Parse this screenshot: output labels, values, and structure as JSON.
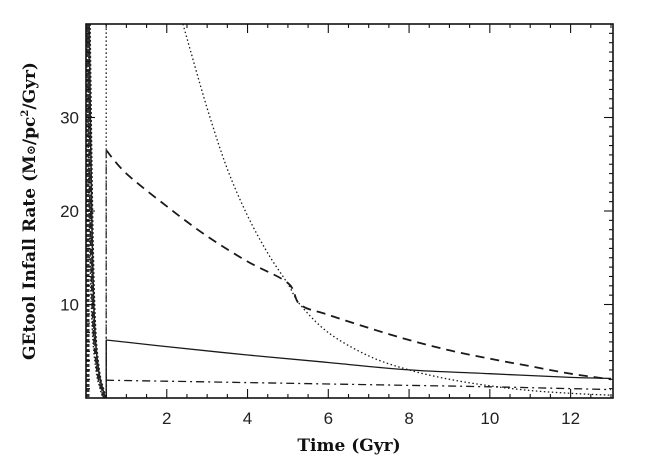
{
  "chart_data": {
    "type": "line",
    "title": "",
    "xlabel": "Time (Gyr)",
    "ylabel": "GEtool Infall Rate (M⊙/pc²/Gyr)",
    "xlim": [
      0,
      13.05
    ],
    "ylim": [
      0,
      40
    ],
    "grid": false,
    "legend": null,
    "x_ticks": [
      2,
      4,
      6,
      8,
      10,
      12
    ],
    "y_ticks": [
      10,
      20,
      30
    ],
    "x_minor_step": 0.5,
    "y_minor_step": 1,
    "series": [
      {
        "name": "solid",
        "style": "solid",
        "x": [
          0.5,
          2,
          4,
          6,
          8,
          10,
          12,
          13
        ],
        "y": [
          6.2,
          5.5,
          4.6,
          3.8,
          3.0,
          2.6,
          2.2,
          2.1
        ]
      },
      {
        "name": "dashed",
        "style": "dashed",
        "x": [
          0.5,
          1,
          2,
          3,
          4,
          5,
          5.3,
          6,
          7,
          8,
          9,
          10,
          11,
          12,
          13
        ],
        "y": [
          26.5,
          24.0,
          20.5,
          17.3,
          14.6,
          12.3,
          10.0,
          8.9,
          7.5,
          6.2,
          5.1,
          4.2,
          3.4,
          2.6,
          2.0
        ]
      },
      {
        "name": "dotted",
        "style": "dotted",
        "x": [
          2.4,
          3,
          3.5,
          4,
          4.5,
          5,
          5.3,
          6,
          7,
          8,
          9,
          10,
          11,
          12,
          13
        ],
        "y": [
          40,
          31,
          24.5,
          19.5,
          15.5,
          12.2,
          10.0,
          7.0,
          4.5,
          3.0,
          2.0,
          1.3,
          0.8,
          0.5,
          0.3
        ]
      },
      {
        "name": "dash-dot",
        "style": "dashdot",
        "x": [
          0.5,
          2,
          4,
          6,
          8,
          10,
          12,
          13
        ],
        "y": [
          1.9,
          1.8,
          1.65,
          1.5,
          1.35,
          1.2,
          1.0,
          0.9
        ]
      },
      {
        "name": "vertical-dotted-at-0.5",
        "style": "dotted",
        "x": [
          0.5,
          0.5
        ],
        "y": [
          0,
          40
        ]
      },
      {
        "name": "early-burst-dense",
        "style": "mixed",
        "x": [
          0.02,
          0.08,
          0.15,
          0.25,
          0.35,
          0.42
        ],
        "y": [
          40,
          20,
          8,
          3,
          1,
          0
        ]
      }
    ]
  },
  "axes": {
    "x_title": "Time (Gyr)",
    "y_title_prefix": "GEtool Infall Rate (M",
    "y_title_sun": "⊙",
    "y_title_mid": "/pc",
    "y_title_sup": "2",
    "y_title_suffix": "/Gyr)",
    "x_tick_labels": [
      "2",
      "4",
      "6",
      "8",
      "10",
      "12"
    ],
    "y_tick_labels": [
      "10",
      "20",
      "30"
    ]
  }
}
